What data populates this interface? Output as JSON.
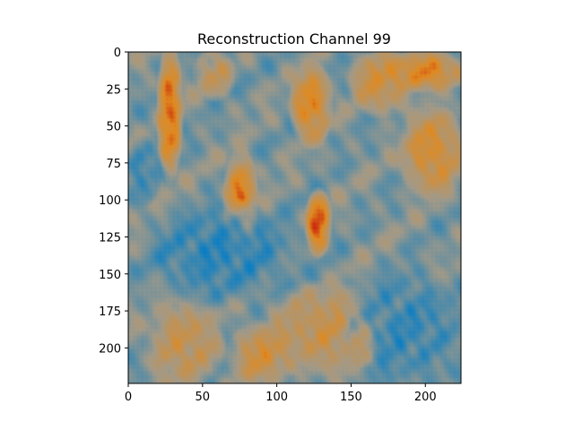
{
  "chart_data": {
    "type": "heatmap",
    "title": "Reconstruction Channel 99",
    "xlabel": "",
    "ylabel": "",
    "width": 224,
    "height": 224,
    "xlim": [
      0,
      224
    ],
    "ylim": [
      224,
      0
    ],
    "xticks": [
      0,
      50,
      100,
      150,
      200
    ],
    "yticks": [
      0,
      25,
      50,
      75,
      100,
      125,
      150,
      175,
      200
    ],
    "grid": false,
    "legend": "none",
    "colormap": {
      "low": "#0a7ec4",
      "mid": "#a39a88",
      "high_mid": "#e08a20",
      "high": "#c8200a"
    },
    "regions": [
      {
        "x": [
          20,
          35
        ],
        "y": [
          0,
          80
        ],
        "level": 0.85
      },
      {
        "x": [
          45,
          70
        ],
        "y": [
          0,
          30
        ],
        "level": 0.55
      },
      {
        "x": [
          65,
          85
        ],
        "y": [
          70,
          130
        ],
        "level": 0.8
      },
      {
        "x": [
          110,
          135
        ],
        "y": [
          10,
          60
        ],
        "level": 0.75
      },
      {
        "x": [
          120,
          135
        ],
        "y": [
          95,
          135
        ],
        "level": 0.9
      },
      {
        "x": [
          150,
          190
        ],
        "y": [
          0,
          40
        ],
        "level": 0.65
      },
      {
        "x": [
          175,
          224
        ],
        "y": [
          0,
          25
        ],
        "level": 0.75
      },
      {
        "x": [
          185,
          224
        ],
        "y": [
          40,
          95
        ],
        "level": 0.7
      },
      {
        "x": [
          15,
          60
        ],
        "y": [
          170,
          224
        ],
        "level": 0.6
      },
      {
        "x": [
          70,
          110
        ],
        "y": [
          185,
          224
        ],
        "level": 0.65
      },
      {
        "x": [
          95,
          170
        ],
        "y": [
          160,
          215
        ],
        "level": 0.6
      },
      {
        "x": [
          150,
          165
        ],
        "y": [
          180,
          210
        ],
        "level": 0.9
      },
      {
        "x": [
          15,
          110
        ],
        "y": [
          105,
          165
        ],
        "level": 0.12
      },
      {
        "x": [
          150,
          224
        ],
        "y": [
          150,
          224
        ],
        "level": 0.15
      },
      {
        "x": [
          0,
          20
        ],
        "y": [
          60,
          100
        ],
        "level": 0.15
      }
    ]
  }
}
